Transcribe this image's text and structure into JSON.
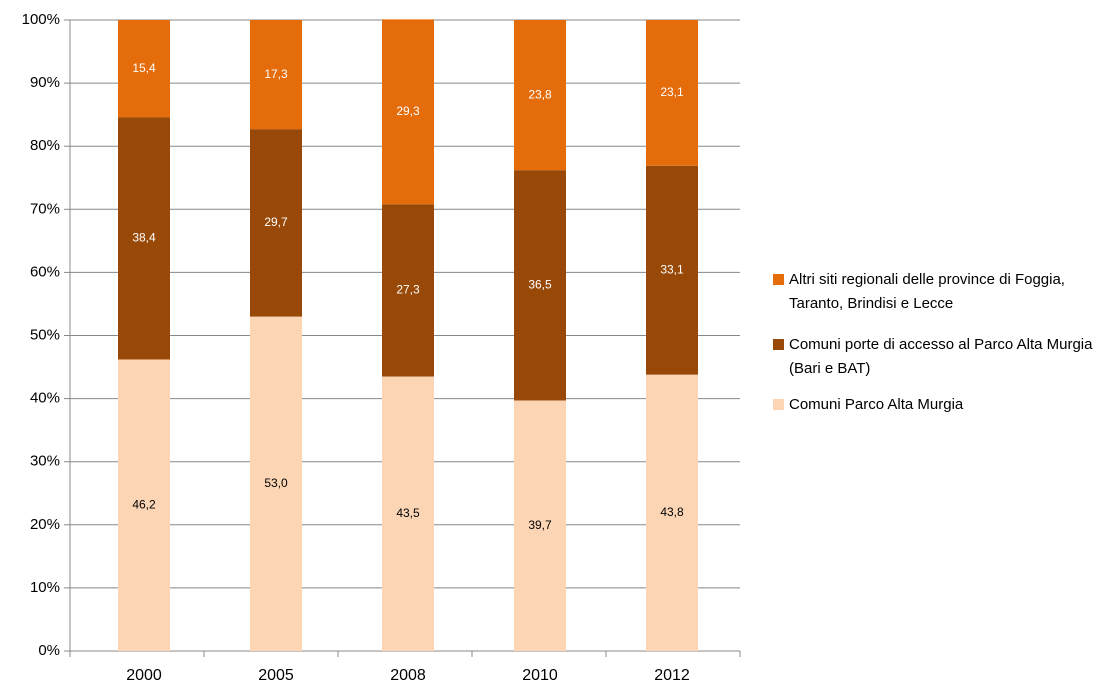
{
  "chart_data": {
    "type": "stacked_bar",
    "categories": [
      "2000",
      "2005",
      "2008",
      "2010",
      "2012"
    ],
    "series": [
      {
        "name": "Comuni Parco Alta Murgia",
        "color": "#fcd5b5",
        "values": [
          46.2,
          53.0,
          43.5,
          39.7,
          43.8
        ],
        "value_labels": [
          "46,2",
          "53,0",
          "43,5",
          "39,7",
          "43,8"
        ]
      },
      {
        "name": "Comuni porte di accesso al Parco Alta Murgia (Bari e BAT)",
        "color": "#984807",
        "values": [
          38.4,
          29.7,
          27.3,
          36.5,
          33.1
        ],
        "value_labels": [
          "38,4",
          "29,7",
          "27,3",
          "36,5",
          "33,1"
        ]
      },
      {
        "name": "Altri siti regionali delle province di Foggia, Taranto, Brindisi e Lecce",
        "color": "#e46c0a",
        "values": [
          15.4,
          17.3,
          29.3,
          23.8,
          23.1
        ],
        "value_labels": [
          "15,4",
          "17,3",
          "29,3",
          "23,8",
          "23,1"
        ]
      }
    ],
    "ylim": [
      0,
      100
    ],
    "yticks": [
      {
        "value": 0,
        "label": "0%"
      },
      {
        "value": 10,
        "label": "10%"
      },
      {
        "value": 20,
        "label": "20%"
      },
      {
        "value": 30,
        "label": "30%"
      },
      {
        "value": 40,
        "label": "40%"
      },
      {
        "value": 50,
        "label": "50%"
      },
      {
        "value": 60,
        "label": "60%"
      },
      {
        "value": 70,
        "label": "70%"
      },
      {
        "value": 80,
        "label": "80%"
      },
      {
        "value": 90,
        "label": "90%"
      },
      {
        "value": 100,
        "label": "100%"
      }
    ],
    "grid": true,
    "legend": "right"
  }
}
